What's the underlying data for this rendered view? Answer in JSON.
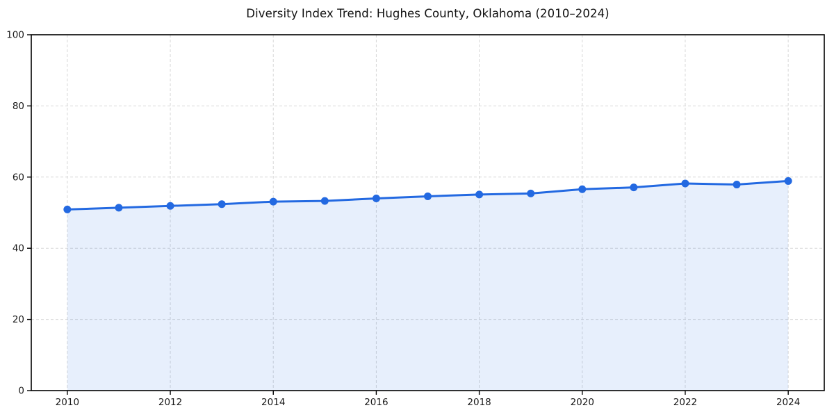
{
  "chart_data": {
    "type": "line",
    "title": "Diversity Index Trend: Hughes County, Oklahoma (2010–2024)",
    "x": [
      2010,
      2011,
      2012,
      2013,
      2014,
      2015,
      2016,
      2017,
      2018,
      2019,
      2020,
      2021,
      2022,
      2023,
      2024
    ],
    "series": [
      {
        "name": "Diversity Index",
        "values": [
          50.9,
          51.4,
          51.9,
          52.4,
          53.1,
          53.3,
          54.0,
          54.6,
          55.1,
          55.4,
          56.6,
          57.1,
          58.2,
          57.9,
          58.9
        ]
      }
    ],
    "xlabel": "",
    "ylabel": "",
    "xlim": [
      2009.3,
      2024.7
    ],
    "ylim": [
      0,
      100
    ],
    "xticks": [
      2010,
      2012,
      2014,
      2016,
      2018,
      2020,
      2022,
      2024
    ],
    "yticks": [
      0,
      20,
      40,
      60,
      80,
      100
    ],
    "grid": true,
    "grid_style": "dashed",
    "legend_position": "none",
    "line_color": "#2369e1",
    "fill_color": "rgba(35,105,225,0.11)",
    "marker": "circle",
    "grid_color": "#d7d7d7",
    "axis_color": "#000000",
    "tick_label_color": "#1a1a1a",
    "plot_background": "#ffffff"
  }
}
